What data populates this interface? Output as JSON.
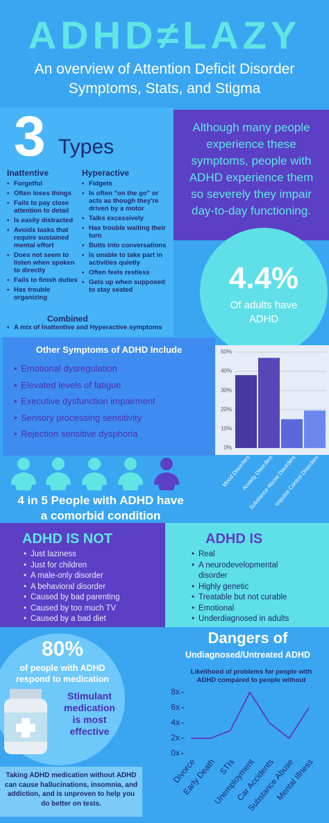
{
  "header": {
    "title": "ADHD≠LAZY",
    "subtitle": [
      "An overview of Attention Deficit Disorder",
      "Symptoms, Stats, and Stigma"
    ]
  },
  "types": {
    "number": "3",
    "label": "Types",
    "inattentive": {
      "title": "Inattentive",
      "items": [
        "Forgetful",
        "Often loses things",
        "Fails to pay close attention to detail",
        "Is easily distracted",
        "Avoids tasks that require sustained mental effort",
        "Does not seem to listen when spoken to directly",
        "Fails to finish duties",
        "Has trouble organizing"
      ]
    },
    "hyperactive": {
      "title": "Hyperactive",
      "items": [
        "Fidgets",
        "Is often \"on the go\" or acts as though they're driven by a motor",
        "Talks excessively",
        "Has trouble waiting their turn",
        "Butts into conversations",
        "Is unable to take part in activities quietly",
        "Often feels restless",
        "Gets up when supposed to stay seated"
      ]
    },
    "combined": {
      "title": "Combined",
      "items": [
        "A mix of Inattentive and Hyperactive symptoms"
      ]
    }
  },
  "quote": [
    "Although many people",
    "experience these",
    "symptoms, people with",
    "ADHD experience them",
    "so severely they impair",
    "day-to-day functioning."
  ],
  "stat_adults": {
    "value": "4.4%",
    "label": [
      "Of adults have",
      "ADHD"
    ]
  },
  "other_symptoms": {
    "title": "Other Symptoms of ADHD Include",
    "items": [
      "Emotional dysregulation",
      "Elevated levels of fatigue",
      "Executive dysfunction impairment",
      "Sensory processing sensitivity",
      "Rejection sensitive dysphoria"
    ]
  },
  "comorbid": [
    "4 in 5 People with ADHD have",
    "a comorbid condition"
  ],
  "is_not": {
    "title": "ADHD IS NOT",
    "items": [
      "Just laziness",
      "Just for children",
      "A male-only disorder",
      "A behavioral disorder",
      "Caused by bad parenting",
      "Caused by too much TV",
      "Caused by a bad diet"
    ]
  },
  "is": {
    "title": "ADHD IS",
    "items": [
      "Real",
      "A neurodevelopmental disorder",
      "Highly genetic",
      "Treatable but not curable",
      "Emotional",
      "Underdiagnosed in adults"
    ]
  },
  "medication": {
    "value": "80%",
    "label": [
      "of people with ADHD",
      "respond to medication"
    ],
    "note": [
      "Stimulant",
      "medication",
      "is most",
      "effective"
    ]
  },
  "dangers": {
    "title": "Dangers of",
    "subtitle": "Undiagnosed/Untreated ADHD"
  },
  "footer": "Taking ADHD medication without ADHD can cause hallucinations, insomnia, and addiction, and is unproven to help you do better on tests.",
  "chart_data": [
    {
      "type": "bar",
      "categories": [
        "Mood Disorders",
        "Anxiety Disorders",
        "Substance Abuse Disorders",
        "Impulse Control Disorders"
      ],
      "values": [
        38,
        47,
        15,
        19.5
      ],
      "colors": [
        "#47389f",
        "#5646b8",
        "#5a68dc",
        "#6c86f0"
      ],
      "ylim": [
        0,
        50
      ],
      "yticks": [
        {
          "value": 0,
          "label": "0%"
        },
        {
          "value": 10,
          "label": "10%"
        },
        {
          "value": 20,
          "label": "20%"
        },
        {
          "value": 30,
          "label": "30%"
        },
        {
          "value": 40,
          "label": "40%"
        },
        {
          "value": 50,
          "label": "50%"
        }
      ],
      "grid": true
    },
    {
      "type": "line",
      "title": "Likelihood of  problems for people with ADHD compared to people without",
      "categories": [
        "Divorce",
        "Early Death",
        "STIs",
        "Unemployment",
        "Car Accidents",
        "Substance Abuse",
        "Mental Illness"
      ],
      "values": [
        2,
        2,
        3,
        8,
        4,
        2,
        6
      ],
      "color": "#5b3fc4",
      "ylim": [
        0,
        8
      ],
      "yticks": [
        {
          "value": 0,
          "label": "0x"
        },
        {
          "value": 2,
          "label": "2x"
        },
        {
          "value": 4,
          "label": "4x"
        },
        {
          "value": 6,
          "label": "6x"
        },
        {
          "value": 8,
          "label": "8x"
        }
      ],
      "grid": false
    }
  ]
}
